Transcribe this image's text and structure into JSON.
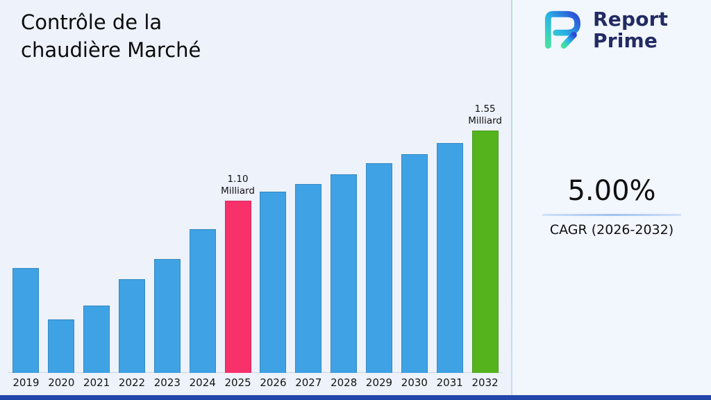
{
  "title": {
    "line1": "Contrôle de la",
    "line2": "chaudière Marché"
  },
  "logo": {
    "line1": "Report",
    "line2": "Prime"
  },
  "cagr": {
    "value": "5.00%",
    "label": "CAGR (2026-2032)"
  },
  "chart_data": {
    "type": "bar",
    "title": "Contrôle de la chaudière Marché",
    "unit": "Milliard",
    "xlabel": "",
    "ylabel": "",
    "ylim": [
      0,
      1.75
    ],
    "grid": false,
    "categories": [
      "2019",
      "2020",
      "2021",
      "2022",
      "2023",
      "2024",
      "2025",
      "2026",
      "2027",
      "2028",
      "2029",
      "2030",
      "2031",
      "2032"
    ],
    "values": [
      0.67,
      0.34,
      0.43,
      0.6,
      0.73,
      0.92,
      1.1,
      1.16,
      1.21,
      1.27,
      1.34,
      1.4,
      1.47,
      1.55
    ],
    "annotations": [
      {
        "category": "2025",
        "lines": [
          "1.10",
          "Milliard"
        ]
      },
      {
        "category": "2032",
        "lines": [
          "1.55",
          "Milliard"
        ]
      }
    ],
    "colors": {
      "default": "#3FA2E4",
      "2025": "#F8316B",
      "2032": "#55B41E"
    }
  }
}
